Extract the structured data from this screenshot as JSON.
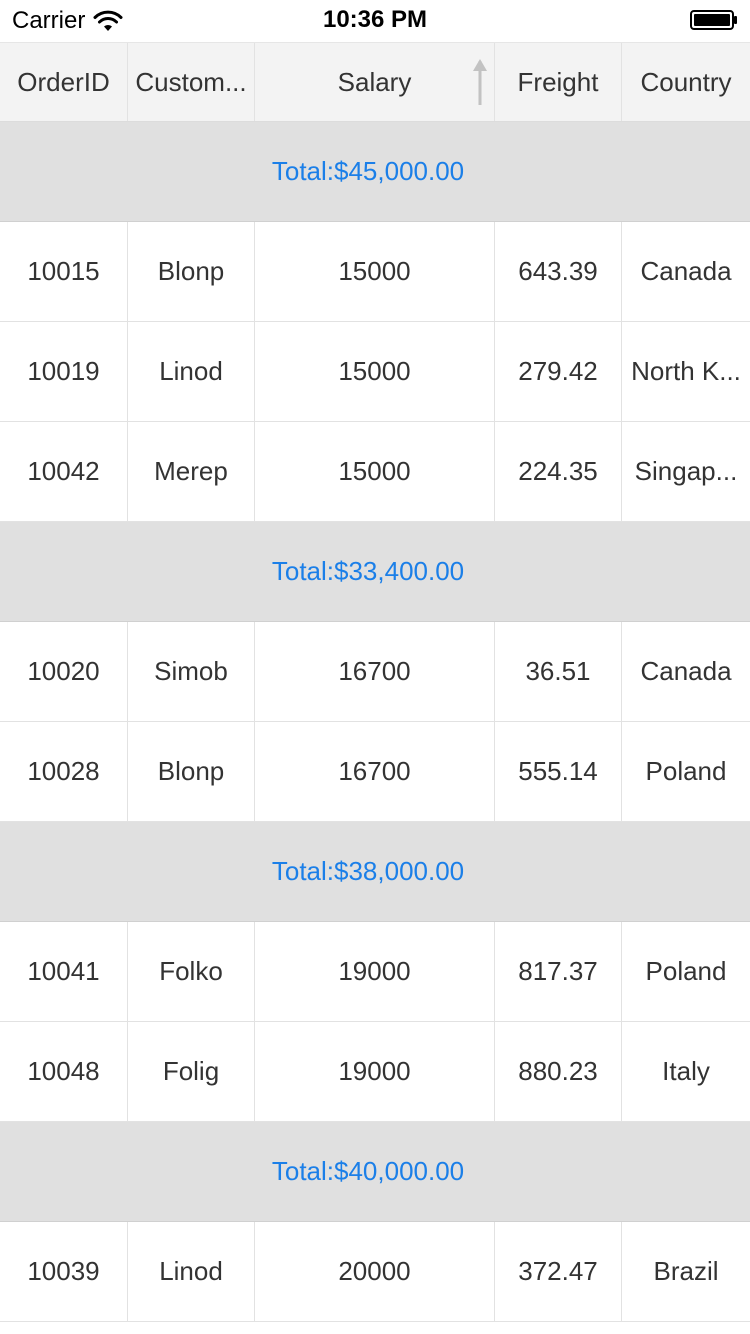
{
  "status_bar": {
    "carrier": "Carrier",
    "time": "10:36 PM",
    "wifi_icon": "wifi-icon",
    "battery_icon": "battery-icon"
  },
  "grid": {
    "columns": [
      "OrderID",
      "Custom...",
      "Salary",
      "Freight",
      "Country"
    ],
    "sort_column": "Salary",
    "sort_direction": "ascending",
    "groups": [
      {
        "total": "Total:$45,000.00",
        "rows": [
          [
            "10015",
            "Blonp",
            "15000",
            "643.39",
            "Canada"
          ],
          [
            "10019",
            "Linod",
            "15000",
            "279.42",
            "North K..."
          ],
          [
            "10042",
            "Merep",
            "15000",
            "224.35",
            "Singap..."
          ]
        ]
      },
      {
        "total": "Total:$33,400.00",
        "rows": [
          [
            "10020",
            "Simob",
            "16700",
            "36.51",
            "Canada"
          ],
          [
            "10028",
            "Blonp",
            "16700",
            "555.14",
            "Poland"
          ]
        ]
      },
      {
        "total": "Total:$38,000.00",
        "rows": [
          [
            "10041",
            "Folko",
            "19000",
            "817.37",
            "Poland"
          ],
          [
            "10048",
            "Folig",
            "19000",
            "880.23",
            "Italy"
          ]
        ]
      },
      {
        "total": "Total:$40,000.00",
        "rows": [
          [
            "10039",
            "Linod",
            "20000",
            "372.47",
            "Brazil"
          ]
        ]
      }
    ]
  },
  "colors": {
    "group_background": "#e0e0e0",
    "group_text": "#1b7fe8",
    "header_background": "#f3f3f3"
  }
}
